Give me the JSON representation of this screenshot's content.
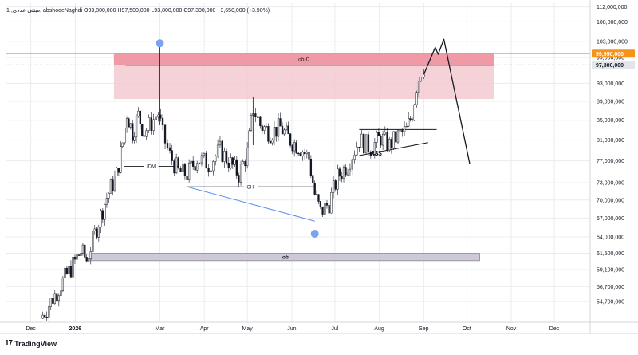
{
  "header": {
    "text": "1 ,مبتنی عددی, abshodeNaghdi O93,800,000 H97,500,000 L93,800,000 C97,300,000 +3,650,000 (+3.90%)"
  },
  "footer": {
    "logo_glyph": "17",
    "brand": "TradingView"
  },
  "colors": {
    "candle": "#131722",
    "zone_light": "#f3c9d1",
    "zone_dark": "#ee8f9f",
    "ob_box": "#c9c3d1",
    "blue_line": "#5b8def",
    "blue_dot": "#7aa3f2",
    "orange_line": "#f5a623",
    "orange_tag": "#f7931a",
    "grid": "#e9ecef",
    "axis_text": "#131722"
  },
  "chart_data": {
    "type": "candlestick",
    "title": "",
    "xlabel": "",
    "ylabel": "",
    "ylim": [
      52000000,
      113000000
    ],
    "x_ticks": [
      "Dec",
      "2026",
      "Mar",
      "Apr",
      "May",
      "Jun",
      "Jul",
      "Aug",
      "Sep",
      "Oct",
      "Nov",
      "Dec"
    ],
    "y_ticks": [
      112000000,
      108000000,
      103000000,
      99000000,
      93000000,
      89000000,
      85000000,
      81000000,
      77000000,
      73000000,
      70000000,
      67000000,
      64000000,
      61500000,
      59100000,
      56700000,
      54700000
    ],
    "y_tick_labels": [
      "112,000,000",
      "108,000,000",
      "103,000,000",
      "99,000,000",
      "93,000,000",
      "89,000,000",
      "85,000,000",
      "81,000,000",
      "77,000,000",
      "73,000,000",
      "70,000,000",
      "67,000,000",
      "64,000,000",
      "61,500,000",
      "59,100,000",
      "56,700,000",
      "54,700,000"
    ],
    "price_tags": [
      {
        "label": "99,950,000",
        "value": 99950000,
        "style": "orange"
      },
      {
        "label": "97,300,000",
        "value": 97300000,
        "style": "gray"
      }
    ],
    "close_series": [
      {
        "t": "2025-12-08",
        "v": 52500000
      },
      {
        "t": "2025-12-15",
        "v": 54700000
      },
      {
        "t": "2025-12-22",
        "v": 57000000
      },
      {
        "t": "2025-12-29",
        "v": 59300000
      },
      {
        "t": "2026-01-05",
        "v": 61800000
      },
      {
        "t": "2026-01-09",
        "v": 60500000
      },
      {
        "t": "2026-01-16",
        "v": 65500000
      },
      {
        "t": "2026-01-23",
        "v": 70500000
      },
      {
        "t": "2026-01-30",
        "v": 74500000
      },
      {
        "t": "2026-02-03",
        "v": 80500000
      },
      {
        "t": "2026-02-06",
        "v": 86500000
      },
      {
        "t": "2026-02-10",
        "v": 82500000
      },
      {
        "t": "2026-02-14",
        "v": 86000000
      },
      {
        "t": "2026-02-18",
        "v": 82500000
      },
      {
        "t": "2026-02-23",
        "v": 84500000
      },
      {
        "t": "2026-02-28",
        "v": 86500000
      },
      {
        "t": "2026-03-03",
        "v": 82000000
      },
      {
        "t": "2026-03-08",
        "v": 78000000
      },
      {
        "t": "2026-03-14",
        "v": 75000000
      },
      {
        "t": "2026-03-20",
        "v": 74500000
      },
      {
        "t": "2026-03-27",
        "v": 77500000
      },
      {
        "t": "2026-04-04",
        "v": 76500000
      },
      {
        "t": "2026-04-12",
        "v": 79000000
      },
      {
        "t": "2026-04-18",
        "v": 77000000
      },
      {
        "t": "2026-04-25",
        "v": 74500000
      },
      {
        "t": "2026-05-01",
        "v": 78500000
      },
      {
        "t": "2026-05-05",
        "v": 87500000
      },
      {
        "t": "2026-05-10",
        "v": 84000000
      },
      {
        "t": "2026-05-17",
        "v": 82500000
      },
      {
        "t": "2026-05-24",
        "v": 83500000
      },
      {
        "t": "2026-05-31",
        "v": 81000000
      },
      {
        "t": "2026-06-07",
        "v": 79500000
      },
      {
        "t": "2026-06-13",
        "v": 77500000
      },
      {
        "t": "2026-06-17",
        "v": 71000000
      },
      {
        "t": "2026-06-21",
        "v": 68000000
      },
      {
        "t": "2026-06-27",
        "v": 69500000
      },
      {
        "t": "2026-07-03",
        "v": 74000000
      },
      {
        "t": "2026-07-10",
        "v": 76500000
      },
      {
        "t": "2026-07-18",
        "v": 81000000
      },
      {
        "t": "2026-07-26",
        "v": 79500000
      },
      {
        "t": "2026-08-02",
        "v": 81500000
      },
      {
        "t": "2026-08-08",
        "v": 80000000
      },
      {
        "t": "2026-08-14",
        "v": 81800000
      },
      {
        "t": "2026-08-20",
        "v": 83000000
      },
      {
        "t": "2026-08-24",
        "v": 86500000
      },
      {
        "t": "2026-08-27",
        "v": 92500000
      },
      {
        "t": "2026-08-30",
        "v": 96000000
      },
      {
        "t": "2026-09-01",
        "v": 97300000
      }
    ],
    "zones": [
      {
        "label": "",
        "y0": 89500000,
        "y1": 100000000,
        "t0": "2026-01-28",
        "t1": "2026-10-20",
        "kind": "supply-light"
      },
      {
        "label": "ob-D",
        "y0": 97300000,
        "y1": 100000000,
        "t0": "2026-01-28",
        "t1": "2026-10-20",
        "kind": "supply-dark"
      },
      {
        "label": "ob",
        "y0": 60400000,
        "y1": 61500000,
        "t0": "2026-01-12",
        "t1": "2026-10-10",
        "kind": "ob"
      }
    ],
    "annotations": [
      {
        "label": "IDM",
        "t0": "2026-02-04",
        "t1": "2026-03-14",
        "y": 76000000
      },
      {
        "label": "CH-",
        "t0": "2026-03-20",
        "t1": "2026-06-17",
        "y": 72300000
      },
      {
        "label": "$$$",
        "t": "2026-07-30",
        "y": 78000000
      }
    ],
    "trend_lines": [
      {
        "kind": "blue",
        "t0": "2026-03-20",
        "y0": 72300000,
        "t1": "2026-06-17",
        "y1": 66500000
      },
      {
        "kind": "black",
        "t0": "2026-07-18",
        "y0": 78000000,
        "t1": "2026-09-04",
        "y1": 80500000
      },
      {
        "kind": "black",
        "t0": "2026-07-18",
        "y0": 83100000,
        "t1": "2026-09-10",
        "y1": 83100000
      },
      {
        "kind": "gray",
        "t0": "2026-02-05",
        "y0": 97000000,
        "t1": "2026-10-20",
        "y1": 97000000
      }
    ],
    "projection_path": [
      {
        "t": "2026-09-01",
        "v": 95000000
      },
      {
        "t": "2026-09-09",
        "v": 101500000
      },
      {
        "t": "2026-09-11",
        "v": 99800000
      },
      {
        "t": "2026-09-15",
        "v": 103500000
      },
      {
        "t": "2026-10-03",
        "v": 76500000
      }
    ],
    "markers": [
      {
        "kind": "dot",
        "t": "2026-03-01",
        "v": 102500000
      },
      {
        "kind": "dot",
        "t": "2026-06-17",
        "v": 64500000
      }
    ],
    "current_price_line": {
      "value": 99950000
    },
    "grid": true,
    "legend": "none"
  }
}
